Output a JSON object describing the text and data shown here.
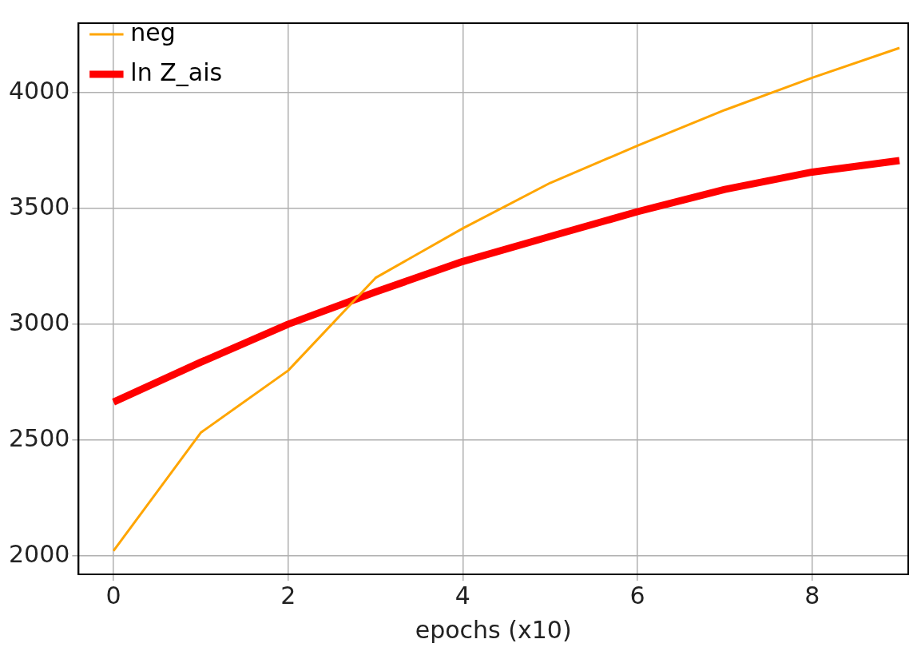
{
  "chart_data": {
    "type": "line",
    "xlabel": "epochs (x10)",
    "x": [
      0,
      1,
      2,
      3,
      4,
      5,
      6,
      7,
      8,
      9
    ],
    "series": [
      {
        "name": "neg",
        "color": "#ffa500",
        "values": [
          2021,
          2532,
          2800,
          3200,
          3414,
          3610,
          3771,
          3925,
          4064,
          4193
        ]
      },
      {
        "name": "ln Z_ais",
        "color": "#ff0000",
        "values": [
          2664,
          2836,
          3000,
          3139,
          3271,
          3379,
          3486,
          3582,
          3657,
          3707
        ]
      }
    ],
    "xlim": [
      -0.4,
      9.1
    ],
    "xticks": [
      0,
      2,
      4,
      6,
      8
    ],
    "ylim": [
      1920,
      4300
    ],
    "yticks": [
      2000,
      2500,
      3000,
      3500,
      4000
    ],
    "grid": true,
    "legend": "top left",
    "marker": "none",
    "line_style": "solid"
  }
}
